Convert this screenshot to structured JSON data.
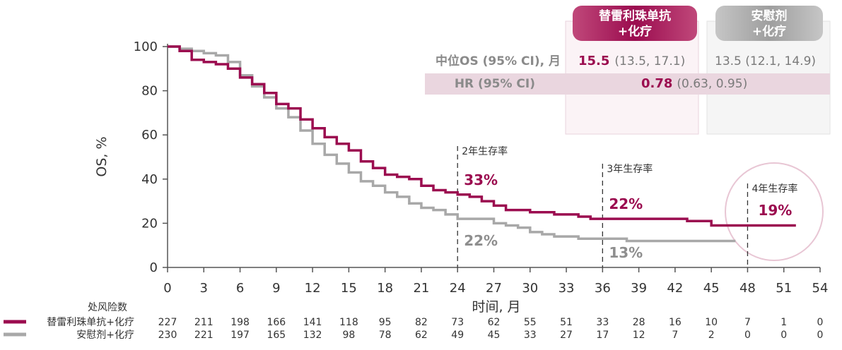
{
  "colors": {
    "treatment": "#9B0C4F",
    "placebo": "#A8A8A8",
    "treatment_light": "#F1DCE5",
    "placebo_light": "#EDEDED"
  },
  "chart_data": {
    "type": "line",
    "title": "",
    "xlabel": "时间, 月",
    "ylabel": "OS, %",
    "xlim": [
      0,
      54
    ],
    "ylim": [
      0,
      100
    ],
    "xticks": [
      "0",
      "3",
      "6",
      "9",
      "12",
      "15",
      "18",
      "21",
      "24",
      "27",
      "30",
      "33",
      "36",
      "39",
      "42",
      "45",
      "48",
      "51",
      "54"
    ],
    "yticks": [
      "0",
      "20",
      "40",
      "60",
      "80",
      "100"
    ],
    "series": [
      {
        "name": "替雷利珠单抗+化疗",
        "color": "#9B0C4F",
        "x": [
          0,
          1,
          2,
          3,
          4,
          5,
          6,
          7,
          8,
          9,
          10,
          11,
          12,
          13,
          14,
          15,
          16,
          17,
          18,
          19,
          20,
          21,
          22,
          23,
          24,
          25,
          26,
          27,
          28,
          29,
          30,
          31,
          32,
          33,
          34,
          35,
          36,
          37,
          38,
          39,
          40,
          41,
          42,
          43,
          44,
          45,
          46,
          47,
          48,
          49,
          50,
          51,
          52
        ],
        "y": [
          100,
          98,
          94,
          93,
          92,
          90,
          86,
          83,
          79,
          74,
          72,
          67,
          63,
          59,
          56,
          53,
          48,
          45,
          42,
          41,
          40,
          37,
          35,
          34,
          33,
          32,
          30,
          28,
          26,
          26,
          25,
          25,
          24,
          24,
          23,
          22,
          22,
          22,
          22,
          22,
          22,
          22,
          22,
          21,
          21,
          19,
          19,
          19,
          19,
          19,
          19,
          19,
          19
        ]
      },
      {
        "name": "安慰剂+化疗",
        "color": "#A8A8A8",
        "x": [
          0,
          1,
          2,
          3,
          4,
          5,
          6,
          7,
          8,
          9,
          10,
          11,
          12,
          13,
          14,
          15,
          16,
          17,
          18,
          19,
          20,
          21,
          22,
          23,
          24,
          25,
          26,
          27,
          28,
          29,
          30,
          31,
          32,
          33,
          34,
          35,
          36,
          37,
          38,
          39,
          40,
          41,
          42,
          43,
          44,
          45,
          46,
          47
        ],
        "y": [
          100,
          99,
          98,
          97,
          96,
          93,
          87,
          82,
          77,
          72,
          68,
          62,
          56,
          51,
          47,
          43,
          39,
          37,
          34,
          32,
          29,
          27,
          26,
          24,
          22,
          22,
          22,
          20,
          19,
          18,
          16,
          15,
          14,
          14,
          13,
          13,
          13,
          13,
          12,
          12,
          12,
          12,
          12,
          12,
          12,
          12,
          12,
          12
        ]
      }
    ],
    "milestones": [
      {
        "label": "2年生存率",
        "month": 24,
        "treatment": "33%",
        "placebo": "22%"
      },
      {
        "label": "3年生存率",
        "month": 36,
        "treatment": "22%",
        "placebo": "13%"
      },
      {
        "label": "4年生存率",
        "month": 48,
        "treatment": "19%",
        "placebo": ""
      }
    ],
    "summary_table": {
      "header_treatment": [
        "替雷利珠单抗",
        "+化疗"
      ],
      "header_placebo": [
        "安慰剂",
        "+化疗"
      ],
      "median_os_label": "中位OS (95% CI), 月",
      "median_os_treatment_value": "15.5",
      "median_os_treatment_ci": "(13.5, 17.1)",
      "median_os_placebo": "13.5 (12.1, 14.9)",
      "hr_label": "HR (95% CI)",
      "hr_value": "0.78",
      "hr_ci": "(0.63, 0.95)"
    },
    "risk_table": {
      "title": "处风险数",
      "rows": [
        {
          "name": "替雷利珠单抗+化疗",
          "values": [
            "227",
            "211",
            "198",
            "166",
            "141",
            "118",
            "95",
            "82",
            "73",
            "62",
            "55",
            "51",
            "33",
            "28",
            "16",
            "10",
            "7",
            "1",
            "0"
          ]
        },
        {
          "name": "安慰剂+化疗",
          "values": [
            "230",
            "221",
            "197",
            "165",
            "132",
            "98",
            "78",
            "62",
            "49",
            "45",
            "33",
            "27",
            "17",
            "12",
            "7",
            "2",
            "0",
            "0",
            "0"
          ]
        }
      ]
    }
  }
}
